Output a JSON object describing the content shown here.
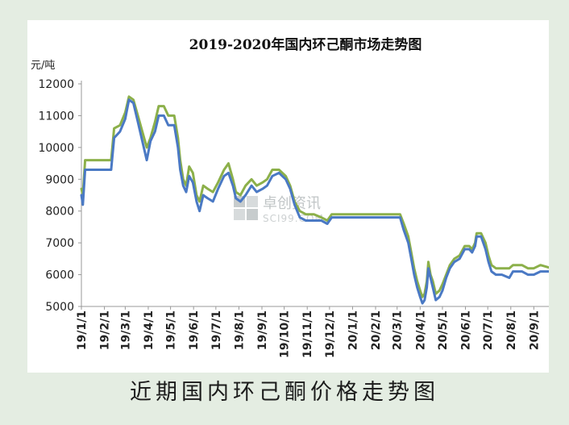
{
  "caption": "近期国内环己酮价格走势图",
  "watermark": {
    "cn": "卓创资讯",
    "en": "SCI99.COM"
  },
  "colors": {
    "series_green": "#8cb04a",
    "series_blue": "#4a79c4",
    "background": "#e4ede2"
  },
  "chart_data": {
    "type": "line",
    "title": "2019-2020年国内环己酮市场走势图",
    "ylabel": "元/吨",
    "xlabel": "",
    "ylim": [
      5000,
      12000
    ],
    "y_ticks": [
      5000,
      6000,
      7000,
      8000,
      9000,
      10000,
      11000,
      12000
    ],
    "x_tick_labels": [
      "19/1/1",
      "19/2/1",
      "19/3/1",
      "19/4/1",
      "19/5/1",
      "19/6/1",
      "19/7/1",
      "19/8/1",
      "19/9/1",
      "19/10/1",
      "19/11/1",
      "19/12/1",
      "20/1/1",
      "20/2/1",
      "20/3/1",
      "20/4/1",
      "20/5/1",
      "20/6/1",
      "20/7/1",
      "20/8/1",
      "20/9/1"
    ],
    "x_axis_end": "20/10/1",
    "grid": false,
    "legend": "none",
    "series": [
      {
        "color": "#8cb04a",
        "points": [
          [
            "2019-01-01",
            8700
          ],
          [
            "2019-01-03",
            8500
          ],
          [
            "2019-01-06",
            9600
          ],
          [
            "2019-01-25",
            9600
          ],
          [
            "2019-02-10",
            9600
          ],
          [
            "2019-02-14",
            10600
          ],
          [
            "2019-02-22",
            10700
          ],
          [
            "2019-03-01",
            11100
          ],
          [
            "2019-03-06",
            11600
          ],
          [
            "2019-03-12",
            11500
          ],
          [
            "2019-03-18",
            11000
          ],
          [
            "2019-03-24",
            10500
          ],
          [
            "2019-03-30",
            10000
          ],
          [
            "2019-04-04",
            10300
          ],
          [
            "2019-04-10",
            10800
          ],
          [
            "2019-04-15",
            11300
          ],
          [
            "2019-04-22",
            11300
          ],
          [
            "2019-04-28",
            11000
          ],
          [
            "2019-05-06",
            11000
          ],
          [
            "2019-05-11",
            10300
          ],
          [
            "2019-05-14",
            9600
          ],
          [
            "2019-05-18",
            9000
          ],
          [
            "2019-05-22",
            8800
          ],
          [
            "2019-05-26",
            9400
          ],
          [
            "2019-05-31",
            9200
          ],
          [
            "2019-06-05",
            8500
          ],
          [
            "2019-06-09",
            8300
          ],
          [
            "2019-06-14",
            8800
          ],
          [
            "2019-06-20",
            8700
          ],
          [
            "2019-06-27",
            8600
          ],
          [
            "2019-07-04",
            8900
          ],
          [
            "2019-07-12",
            9300
          ],
          [
            "2019-07-18",
            9500
          ],
          [
            "2019-07-24",
            9000
          ],
          [
            "2019-07-28",
            8600
          ],
          [
            "2019-08-03",
            8500
          ],
          [
            "2019-08-10",
            8800
          ],
          [
            "2019-08-18",
            9000
          ],
          [
            "2019-08-25",
            8800
          ],
          [
            "2019-09-02",
            8900
          ],
          [
            "2019-09-08",
            9000
          ],
          [
            "2019-09-15",
            9300
          ],
          [
            "2019-09-24",
            9300
          ],
          [
            "2019-10-03",
            9100
          ],
          [
            "2019-10-09",
            8800
          ],
          [
            "2019-10-15",
            8300
          ],
          [
            "2019-10-22",
            8000
          ],
          [
            "2019-10-30",
            7900
          ],
          [
            "2019-11-10",
            7900
          ],
          [
            "2019-11-20",
            7800
          ],
          [
            "2019-11-28",
            7700
          ],
          [
            "2019-12-04",
            7900
          ],
          [
            "2019-12-15",
            7900
          ],
          [
            "2020-01-01",
            7900
          ],
          [
            "2020-02-01",
            7900
          ],
          [
            "2020-03-01",
            7900
          ],
          [
            "2020-03-05",
            7900
          ],
          [
            "2020-03-10",
            7600
          ],
          [
            "2020-03-16",
            7200
          ],
          [
            "2020-03-20",
            6700
          ],
          [
            "2020-03-24",
            6200
          ],
          [
            "2020-03-28",
            5800
          ],
          [
            "2020-04-01",
            5500
          ],
          [
            "2020-04-04",
            5300
          ],
          [
            "2020-04-07",
            5400
          ],
          [
            "2020-04-10",
            5800
          ],
          [
            "2020-04-12",
            6400
          ],
          [
            "2020-04-15",
            6000
          ],
          [
            "2020-04-18",
            5800
          ],
          [
            "2020-04-22",
            5400
          ],
          [
            "2020-04-27",
            5500
          ],
          [
            "2020-05-01",
            5700
          ],
          [
            "2020-05-06",
            6000
          ],
          [
            "2020-05-11",
            6300
          ],
          [
            "2020-05-17",
            6500
          ],
          [
            "2020-05-24",
            6600
          ],
          [
            "2020-05-31",
            6900
          ],
          [
            "2020-06-06",
            6900
          ],
          [
            "2020-06-10",
            6800
          ],
          [
            "2020-06-14",
            7000
          ],
          [
            "2020-06-16",
            7300
          ],
          [
            "2020-06-22",
            7300
          ],
          [
            "2020-06-28",
            7000
          ],
          [
            "2020-07-02",
            6600
          ],
          [
            "2020-07-06",
            6300
          ],
          [
            "2020-07-12",
            6200
          ],
          [
            "2020-07-20",
            6200
          ],
          [
            "2020-07-30",
            6200
          ],
          [
            "2020-08-04",
            6300
          ],
          [
            "2020-08-16",
            6300
          ],
          [
            "2020-08-24",
            6200
          ],
          [
            "2020-09-01",
            6200
          ],
          [
            "2020-09-10",
            6300
          ],
          [
            "2020-09-25",
            6200
          ],
          [
            "2020-09-28",
            6100
          ]
        ]
      },
      {
        "color": "#4a79c4",
        "points": [
          [
            "2019-01-01",
            8500
          ],
          [
            "2019-01-03",
            8200
          ],
          [
            "2019-01-06",
            9300
          ],
          [
            "2019-01-25",
            9300
          ],
          [
            "2019-02-10",
            9300
          ],
          [
            "2019-02-14",
            10300
          ],
          [
            "2019-02-22",
            10500
          ],
          [
            "2019-03-01",
            10900
          ],
          [
            "2019-03-06",
            11500
          ],
          [
            "2019-03-12",
            11400
          ],
          [
            "2019-03-18",
            10800
          ],
          [
            "2019-03-24",
            10200
          ],
          [
            "2019-03-30",
            9600
          ],
          [
            "2019-04-04",
            10200
          ],
          [
            "2019-04-10",
            10500
          ],
          [
            "2019-04-15",
            11000
          ],
          [
            "2019-04-22",
            11000
          ],
          [
            "2019-04-28",
            10700
          ],
          [
            "2019-05-06",
            10700
          ],
          [
            "2019-05-11",
            10000
          ],
          [
            "2019-05-14",
            9300
          ],
          [
            "2019-05-18",
            8800
          ],
          [
            "2019-05-22",
            8600
          ],
          [
            "2019-05-26",
            9100
          ],
          [
            "2019-05-31",
            8900
          ],
          [
            "2019-06-05",
            8300
          ],
          [
            "2019-06-09",
            8000
          ],
          [
            "2019-06-14",
            8500
          ],
          [
            "2019-06-20",
            8400
          ],
          [
            "2019-06-27",
            8300
          ],
          [
            "2019-07-04",
            8700
          ],
          [
            "2019-07-12",
            9100
          ],
          [
            "2019-07-18",
            9200
          ],
          [
            "2019-07-24",
            8800
          ],
          [
            "2019-07-28",
            8400
          ],
          [
            "2019-08-03",
            8300
          ],
          [
            "2019-08-10",
            8500
          ],
          [
            "2019-08-18",
            8800
          ],
          [
            "2019-08-25",
            8600
          ],
          [
            "2019-09-02",
            8700
          ],
          [
            "2019-09-08",
            8800
          ],
          [
            "2019-09-15",
            9100
          ],
          [
            "2019-09-24",
            9200
          ],
          [
            "2019-10-03",
            9000
          ],
          [
            "2019-10-09",
            8700
          ],
          [
            "2019-10-15",
            8200
          ],
          [
            "2019-10-22",
            7800
          ],
          [
            "2019-10-30",
            7700
          ],
          [
            "2019-11-10",
            7700
          ],
          [
            "2019-11-20",
            7700
          ],
          [
            "2019-11-28",
            7600
          ],
          [
            "2019-12-04",
            7800
          ],
          [
            "2019-12-15",
            7800
          ],
          [
            "2020-01-01",
            7800
          ],
          [
            "2020-02-01",
            7800
          ],
          [
            "2020-03-01",
            7800
          ],
          [
            "2020-03-05",
            7800
          ],
          [
            "2020-03-10",
            7400
          ],
          [
            "2020-03-16",
            7000
          ],
          [
            "2020-03-20",
            6500
          ],
          [
            "2020-03-24",
            6000
          ],
          [
            "2020-03-28",
            5600
          ],
          [
            "2020-04-01",
            5300
          ],
          [
            "2020-04-04",
            5100
          ],
          [
            "2020-04-07",
            5200
          ],
          [
            "2020-04-10",
            5600
          ],
          [
            "2020-04-12",
            6200
          ],
          [
            "2020-04-15",
            5900
          ],
          [
            "2020-04-18",
            5600
          ],
          [
            "2020-04-22",
            5200
          ],
          [
            "2020-04-27",
            5300
          ],
          [
            "2020-05-01",
            5500
          ],
          [
            "2020-05-06",
            5900
          ],
          [
            "2020-05-11",
            6200
          ],
          [
            "2020-05-17",
            6400
          ],
          [
            "2020-05-24",
            6500
          ],
          [
            "2020-05-31",
            6800
          ],
          [
            "2020-06-06",
            6800
          ],
          [
            "2020-06-10",
            6700
          ],
          [
            "2020-06-14",
            6900
          ],
          [
            "2020-06-16",
            7200
          ],
          [
            "2020-06-22",
            7200
          ],
          [
            "2020-06-28",
            6800
          ],
          [
            "2020-07-02",
            6400
          ],
          [
            "2020-07-06",
            6100
          ],
          [
            "2020-07-12",
            6000
          ],
          [
            "2020-07-20",
            6000
          ],
          [
            "2020-07-30",
            5900
          ],
          [
            "2020-08-04",
            6100
          ],
          [
            "2020-08-16",
            6100
          ],
          [
            "2020-08-24",
            6000
          ],
          [
            "2020-09-01",
            6000
          ],
          [
            "2020-09-10",
            6100
          ],
          [
            "2020-09-25",
            6100
          ],
          [
            "2020-09-28",
            5900
          ]
        ]
      }
    ]
  }
}
